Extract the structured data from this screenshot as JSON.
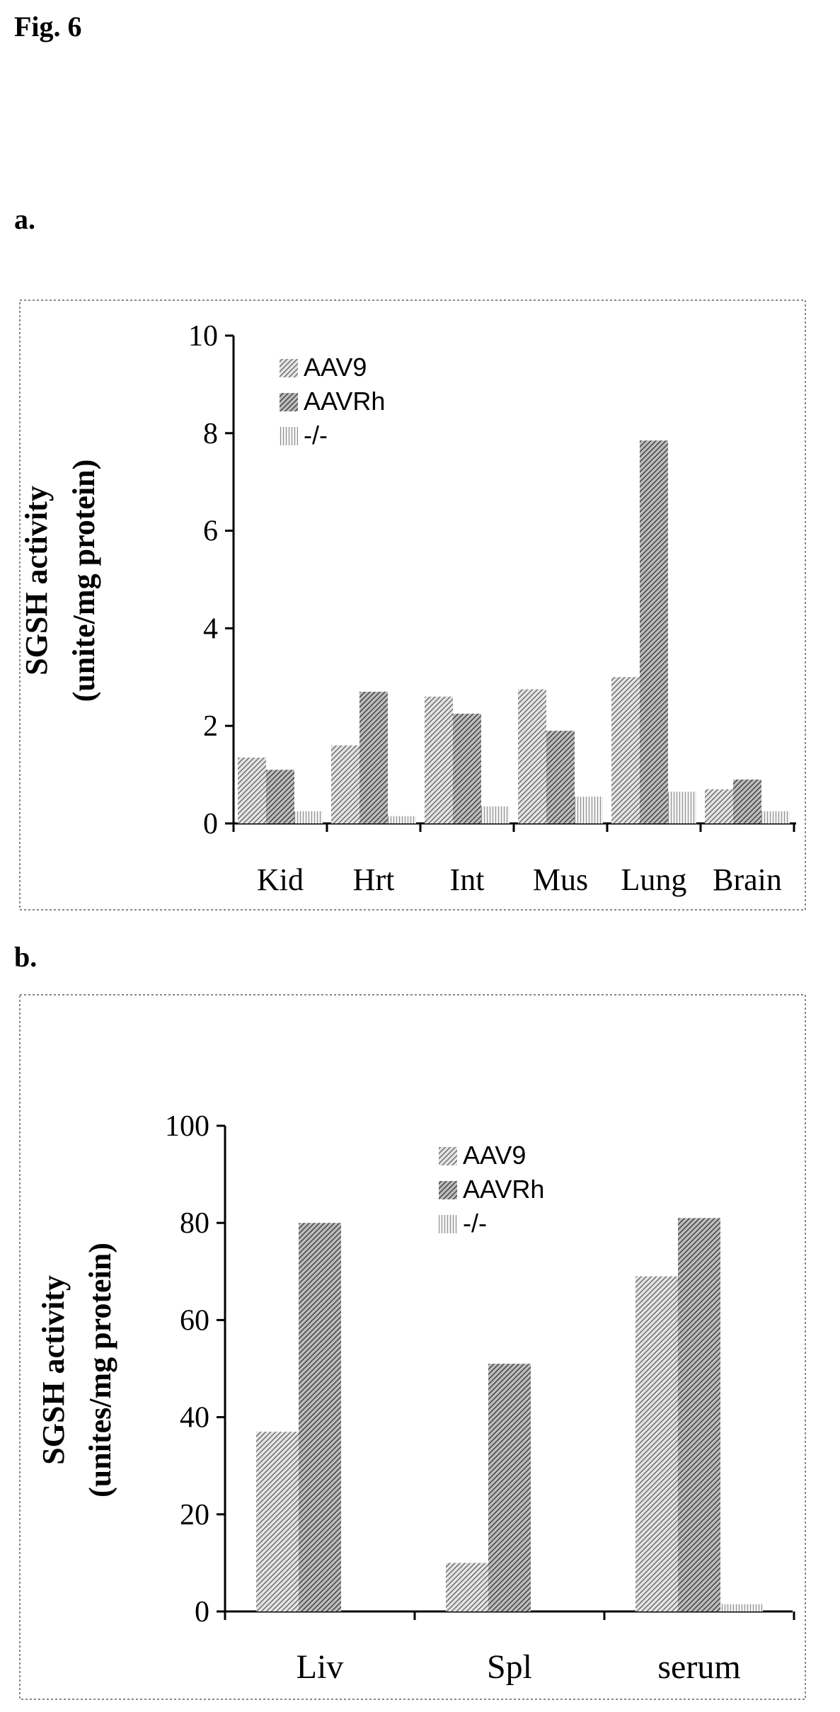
{
  "figure_title": "Fig. 6",
  "panels": {
    "a_label": "a.",
    "b_label": "b."
  },
  "colors": {
    "series_1": "#9a9a9a",
    "series_2": "#6e6e6e",
    "series_3": "#c8c8c8",
    "border": "#888888"
  },
  "chart_data": [
    {
      "type": "bar",
      "title": "",
      "xlabel": "",
      "ylabel_line1": "SGSH activity",
      "ylabel_line2": "(unite/mg protein)",
      "ylim": [
        0,
        10
      ],
      "yticks": [
        "0",
        "2",
        "4",
        "6",
        "8",
        "10"
      ],
      "categories": [
        "Kid",
        "Hrt",
        "Int",
        "Mus",
        "Lung",
        "Brain"
      ],
      "series": [
        {
          "name": "AAV9",
          "values": [
            1.35,
            1.6,
            2.6,
            2.75,
            3.0,
            0.7
          ]
        },
        {
          "name": "AAVRh",
          "values": [
            1.1,
            2.7,
            2.25,
            1.9,
            7.85,
            0.9
          ]
        },
        {
          "name": "-/-",
          "values": [
            0.25,
            0.15,
            0.35,
            0.55,
            0.65,
            0.25
          ]
        }
      ],
      "legend_position": "top-left",
      "grid": false
    },
    {
      "type": "bar",
      "title": "",
      "xlabel": "",
      "ylabel_line1": "SGSH activity",
      "ylabel_line2": "(unites/mg protein)",
      "ylim": [
        0,
        100
      ],
      "yticks": [
        "0",
        "20",
        "40",
        "60",
        "80",
        "100"
      ],
      "categories": [
        "Liv",
        "Spl",
        "serum"
      ],
      "series": [
        {
          "name": "AAV9",
          "values": [
            37,
            10,
            69
          ]
        },
        {
          "name": "AAVRh",
          "values": [
            80,
            51,
            81
          ]
        },
        {
          "name": "-/-",
          "values": [
            0,
            0,
            1.5
          ]
        }
      ],
      "legend_position": "top-center",
      "grid": false
    }
  ]
}
